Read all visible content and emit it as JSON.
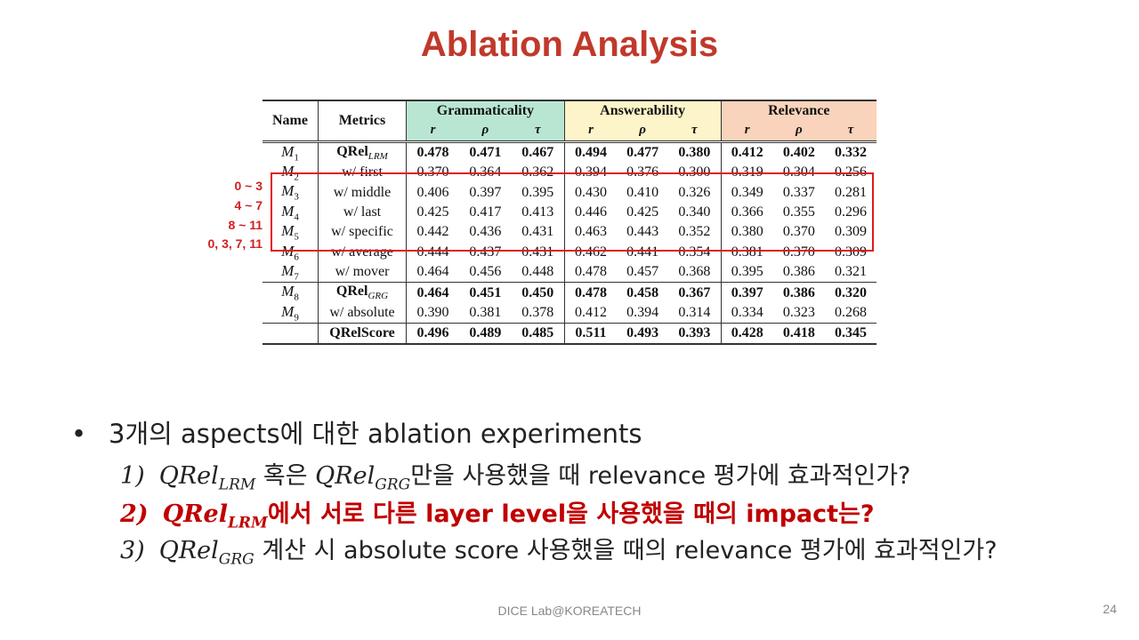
{
  "title": "Ablation Analysis",
  "table": {
    "headers": {
      "name": "Name",
      "metrics": "Metrics",
      "groups": [
        "Grammaticality",
        "Answerability",
        "Relevance"
      ],
      "sub": [
        "r",
        "ρ",
        "τ"
      ]
    },
    "rows": [
      {
        "m": "M",
        "s": "1",
        "metric": "QRel",
        "metric_sub": "LRM",
        "bold": true,
        "vals": [
          "0.478",
          "0.471",
          "0.467",
          "0.494",
          "0.477",
          "0.380",
          "0.412",
          "0.402",
          "0.332"
        ]
      },
      {
        "m": "M",
        "s": "2",
        "metric": "w/ first",
        "metric_sub": "",
        "bold": false,
        "vals": [
          "0.370",
          "0.364",
          "0.362",
          "0.394",
          "0.376",
          "0.300",
          "0.319",
          "0.304",
          "0.256"
        ]
      },
      {
        "m": "M",
        "s": "3",
        "metric": "w/ middle",
        "metric_sub": "",
        "bold": false,
        "vals": [
          "0.406",
          "0.397",
          "0.395",
          "0.430",
          "0.410",
          "0.326",
          "0.349",
          "0.337",
          "0.281"
        ]
      },
      {
        "m": "M",
        "s": "4",
        "metric": "w/ last",
        "metric_sub": "",
        "bold": false,
        "vals": [
          "0.425",
          "0.417",
          "0.413",
          "0.446",
          "0.425",
          "0.340",
          "0.366",
          "0.355",
          "0.296"
        ]
      },
      {
        "m": "M",
        "s": "5",
        "metric": "w/ specific",
        "metric_sub": "",
        "bold": false,
        "vals": [
          "0.442",
          "0.436",
          "0.431",
          "0.463",
          "0.443",
          "0.352",
          "0.380",
          "0.370",
          "0.309"
        ]
      },
      {
        "m": "M",
        "s": "6",
        "metric": "w/ average",
        "metric_sub": "",
        "bold": false,
        "vals": [
          "0.444",
          "0.437",
          "0.431",
          "0.462",
          "0.441",
          "0.354",
          "0.381",
          "0.370",
          "0.309"
        ]
      },
      {
        "m": "M",
        "s": "7",
        "metric": "w/ mover",
        "metric_sub": "",
        "bold": false,
        "vals": [
          "0.464",
          "0.456",
          "0.448",
          "0.478",
          "0.457",
          "0.368",
          "0.395",
          "0.386",
          "0.321"
        ]
      },
      {
        "m": "M",
        "s": "8",
        "metric": "QRel",
        "metric_sub": "GRG",
        "bold": true,
        "vals": [
          "0.464",
          "0.451",
          "0.450",
          "0.478",
          "0.458",
          "0.367",
          "0.397",
          "0.386",
          "0.320"
        ]
      },
      {
        "m": "M",
        "s": "9",
        "metric": "w/ absolute",
        "metric_sub": "",
        "bold": false,
        "vals": [
          "0.390",
          "0.381",
          "0.378",
          "0.412",
          "0.394",
          "0.314",
          "0.334",
          "0.323",
          "0.268"
        ]
      },
      {
        "m": "",
        "s": "",
        "metric": "QRelScore",
        "metric_sub": "",
        "bold": true,
        "vals": [
          "0.496",
          "0.489",
          "0.485",
          "0.511",
          "0.493",
          "0.393",
          "0.428",
          "0.418",
          "0.345"
        ]
      }
    ]
  },
  "layer_ranges": [
    "0 ~ 3",
    "4 ~ 7",
    "8 ~ 11",
    "0, 3, 7, 11"
  ],
  "bullets": {
    "main": "3개의 aspects에 대한 ablation experiments",
    "items": [
      {
        "num": "1)",
        "q": "QRel",
        "qsub": "LRM",
        "mid": " 혹은 ",
        "q2": "QRel",
        "q2sub": "GRG",
        "rest": "만을 사용했을 때 relevance 평가에 효과적인가?"
      },
      {
        "num": "2)",
        "q": "QRel",
        "qsub": "LRM",
        "rest": "에서 서로 다른 layer level을 사용했을 때의 impact는?"
      },
      {
        "num": "3)",
        "q": "QRel",
        "qsub": "GRG",
        "rest": " 계산 시 absolute score 사용했을 때의 relevance 평가에 효과적인가?"
      }
    ]
  },
  "footer": "DICE Lab@KOREATECH",
  "page_number": "24",
  "colors": {
    "title": "#c0392b",
    "highlight": "#e01818",
    "grammaticality": "#b9e6d3",
    "answerability": "#fdf5c9",
    "relevance": "#f9d3bb"
  }
}
